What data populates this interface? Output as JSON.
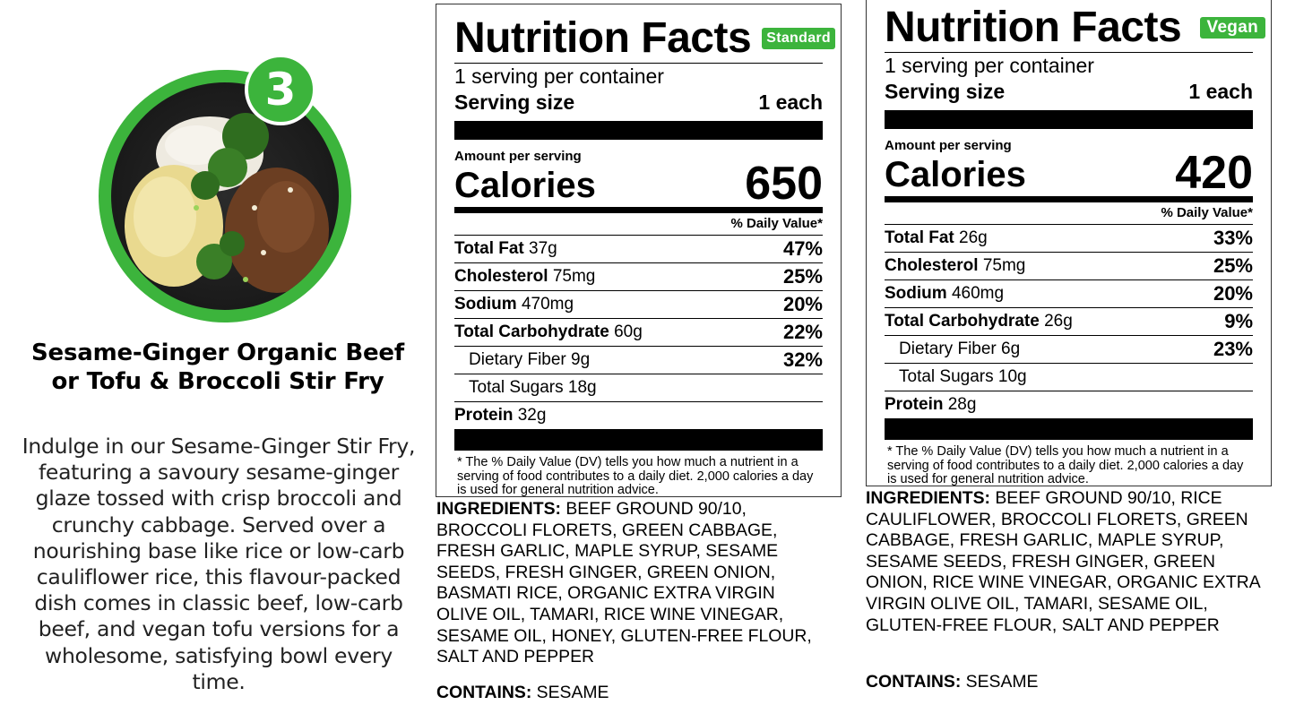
{
  "badge_number": "3",
  "dish": {
    "title": "Sesame-Ginger Organic Beef or Tofu & Broccoli Stir Fry",
    "description": "Indulge in our Sesame-Ginger Stir Fry, featuring a savoury sesame-ginger glaze tossed with crisp broccoli and crunchy cabbage. Served over a nourishing base like rice or low-carb cauliflower rice, this flavour-packed dish comes in classic beef, low-carb beef, and vegan tofu versions for a wholesome, satisfying bowl every time."
  },
  "colors": {
    "brand_green": "#3cb43c"
  },
  "standard": {
    "title": "Nutrition Facts",
    "tag": "Standard",
    "servings": "1 serving per container",
    "serving_size_label": "Serving size",
    "serving_size_value": "1 each",
    "amount_label": "Amount per serving",
    "calories_label": "Calories",
    "calories_value": "650",
    "dv_header": "% Daily Value*",
    "rows": [
      {
        "name": "Total Fat",
        "amount": "37g",
        "pct": "47%"
      },
      {
        "name": "Cholesterol",
        "amount": "75mg",
        "pct": "25%"
      },
      {
        "name": "Sodium",
        "amount": "470mg",
        "pct": "20%"
      },
      {
        "name": "Total Carbohydrate",
        "amount": "60g",
        "pct": "22%"
      },
      {
        "name": "Dietary Fiber",
        "amount": "9g",
        "pct": "32%"
      },
      {
        "name": "Total Sugars",
        "amount": "18g",
        "pct": ""
      },
      {
        "name": "Protein",
        "amount": "32g",
        "pct": ""
      }
    ],
    "footnote": "* The % Daily Value (DV) tells you how much a nutrient in a serving of food contributes to a daily diet. 2,000 calories a day is used for general nutrition advice.",
    "ingredients_label": "INGREDIENTS:",
    "ingredients": "BEEF GROUND 90/10, BROCCOLI FLORETS, GREEN CABBAGE, FRESH GARLIC, MAPLE SYRUP, SESAME SEEDS, FRESH GINGER, GREEN ONION, BASMATI RICE, ORGANIC EXTRA VIRGIN OLIVE OIL, TAMARI, RICE WINE VINEGAR, SESAME OIL, HONEY, GLUTEN-FREE FLOUR, SALT AND PEPPER",
    "contains_label": "CONTAINS:",
    "contains": "SESAME"
  },
  "vegan": {
    "title": "Nutrition Facts",
    "tag": "Vegan",
    "servings": "1 serving per container",
    "serving_size_label": "Serving size",
    "serving_size_value": "1 each",
    "amount_label": "Amount per serving",
    "calories_label": "Calories",
    "calories_value": "420",
    "dv_header": "% Daily Value*",
    "rows": [
      {
        "name": "Total Fat",
        "amount": "26g",
        "pct": "33%"
      },
      {
        "name": "Cholesterol",
        "amount": "75mg",
        "pct": "25%"
      },
      {
        "name": "Sodium",
        "amount": "460mg",
        "pct": "20%"
      },
      {
        "name": "Total Carbohydrate",
        "amount": "26g",
        "pct": "9%"
      },
      {
        "name": "Dietary Fiber",
        "amount": "6g",
        "pct": "23%"
      },
      {
        "name": "Total Sugars",
        "amount": "10g",
        "pct": ""
      },
      {
        "name": "Protein",
        "amount": "28g",
        "pct": ""
      }
    ],
    "footnote": "* The % Daily Value (DV) tells you how much a nutrient in a serving of food contributes to a daily diet. 2,000 calories a day is used for general nutrition advice.",
    "ingredients_label": "INGREDIENTS:",
    "ingredients": "BEEF GROUND 90/10, RICE CAULIFLOWER, BROCCOLI FLORETS, GREEN CABBAGE, FRESH GARLIC, MAPLE SYRUP, SESAME SEEDS, FRESH GINGER, GREEN ONION, RICE WINE VINEGAR, ORGANIC EXTRA VIRGIN OLIVE OIL, TAMARI, SESAME OIL, GLUTEN-FREE FLOUR, SALT AND PEPPER",
    "contains_label": "CONTAINS:",
    "contains": "SESAME"
  }
}
